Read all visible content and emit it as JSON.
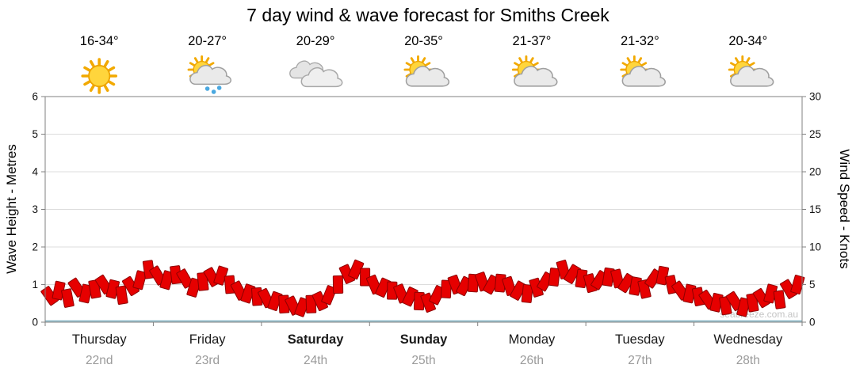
{
  "title": "7 day wind & wave forecast for Smiths Creek",
  "watermark": "seabreeze.com.au",
  "days": [
    {
      "name": "Thursday",
      "date": "22nd",
      "temp": "16-34°",
      "icon": "sunny",
      "bold": false
    },
    {
      "name": "Friday",
      "date": "23rd",
      "temp": "20-27°",
      "icon": "sun-rain",
      "bold": false
    },
    {
      "name": "Saturday",
      "date": "24th",
      "temp": "20-29°",
      "icon": "cloudy",
      "bold": true
    },
    {
      "name": "Sunday",
      "date": "25th",
      "temp": "20-35°",
      "icon": "sun-cloud",
      "bold": true
    },
    {
      "name": "Monday",
      "date": "26th",
      "temp": "21-37°",
      "icon": "sun-cloud",
      "bold": false
    },
    {
      "name": "Tuesday",
      "date": "27th",
      "temp": "21-32°",
      "icon": "sun-cloud",
      "bold": false
    },
    {
      "name": "Wednesday",
      "date": "28th",
      "temp": "20-34°",
      "icon": "sun-cloud",
      "bold": false
    }
  ],
  "chart_data": {
    "type": "scatter",
    "title": "7 day wind & wave forecast for Smiths Creek",
    "ylabel_left": "Wave Height - Metres",
    "ylabel_right": "Wind Speed - Knots",
    "ylim_left": [
      0,
      6
    ],
    "ylim_right": [
      0,
      30
    ],
    "yticks_left": [
      0,
      1,
      2,
      3,
      4,
      5,
      6
    ],
    "yticks_right": [
      0,
      5,
      10,
      15,
      20,
      25,
      30
    ],
    "grid": true,
    "categories": [
      "Thursday 22nd",
      "Friday 23rd",
      "Saturday 24th",
      "Sunday 25th",
      "Monday 26th",
      "Tuesday 27th",
      "Wednesday 28th"
    ],
    "marker": "red rotated wind-barb rectangles",
    "baseline": {
      "color": "#7ab0c0",
      "value": 0
    },
    "series": [
      {
        "name": "Wind Speed (knots)",
        "color": "#e60000",
        "points_per_day": 12,
        "values": [
          3.5,
          4.2,
          3.2,
          4.6,
          3.8,
          4.4,
          5.0,
          4.4,
          3.6,
          4.8,
          5.6,
          7.0,
          6.2,
          5.6,
          6.3,
          5.8,
          4.6,
          5.4,
          6.0,
          6.2,
          5.0,
          4.2,
          3.8,
          3.4,
          3.2,
          2.8,
          2.4,
          2.2,
          2.0,
          2.4,
          2.8,
          3.6,
          5.0,
          6.4,
          7.0,
          6.0,
          5.0,
          4.6,
          4.2,
          3.8,
          3.4,
          2.8,
          2.6,
          3.6,
          4.4,
          5.0,
          4.8,
          5.2,
          5.4,
          5.0,
          5.2,
          4.8,
          4.2,
          3.8,
          4.6,
          5.4,
          6.0,
          7.0,
          6.4,
          5.8,
          5.2,
          5.6,
          6.0,
          5.8,
          5.2,
          4.8,
          4.4,
          5.8,
          6.2,
          5.0,
          4.2,
          3.8,
          3.4,
          3.0,
          2.6,
          2.2,
          2.8,
          2.0,
          2.6,
          3.2,
          3.8,
          3.0,
          4.4,
          5.0
        ]
      }
    ]
  }
}
